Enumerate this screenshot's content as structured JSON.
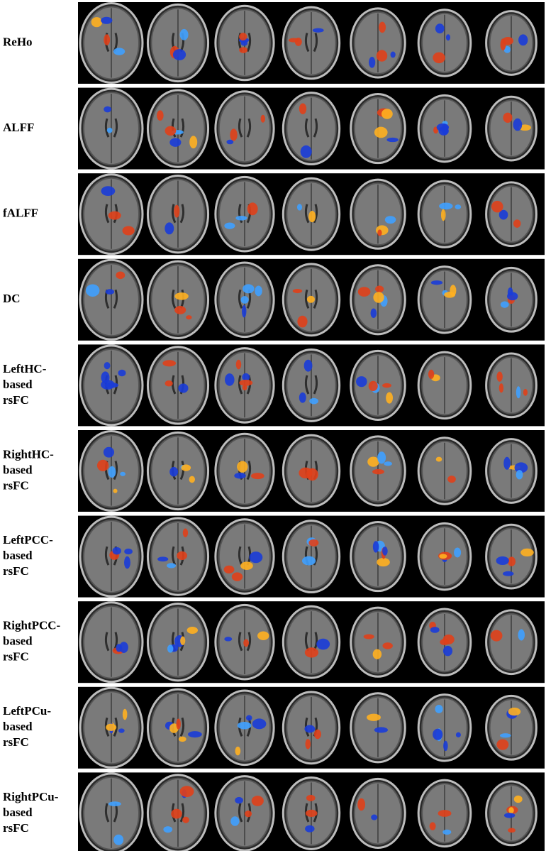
{
  "figure": {
    "rows": [
      {
        "label_lines": [
          "ReHo"
        ]
      },
      {
        "label_lines": [
          "ALFF"
        ]
      },
      {
        "label_lines": [
          "fALFF"
        ]
      },
      {
        "label_lines": [
          "DC"
        ]
      },
      {
        "label_lines": [
          "LeftHC-",
          "based",
          "rsFC"
        ]
      },
      {
        "label_lines": [
          "RightHC-",
          "based",
          "rsFC"
        ]
      },
      {
        "label_lines": [
          "LeftPCC-",
          "based",
          "rsFC"
        ]
      },
      {
        "label_lines": [
          "RightPCC-",
          "based",
          "rsFC"
        ]
      },
      {
        "label_lines": [
          "LeftPCu-",
          "based",
          "rsFC"
        ]
      },
      {
        "label_lines": [
          "RightPCu-",
          "based",
          "rsFC"
        ]
      }
    ]
  }
}
